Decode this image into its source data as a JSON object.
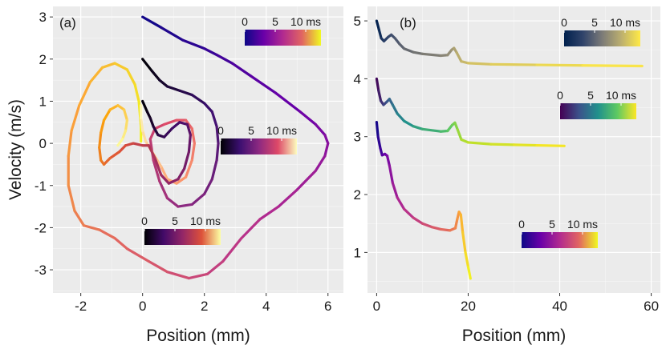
{
  "chart_data": [
    {
      "panel": "(a)",
      "type": "line",
      "xlabel": "Position (mm)",
      "ylabel": "Velocity (m/s)",
      "xlim": [
        -2.9,
        6.5
      ],
      "ylim": [
        -3.55,
        3.25
      ],
      "xticks": [
        -2,
        0,
        2,
        4,
        6
      ],
      "xtick_labels": [
        "-2",
        "0",
        "2",
        "4",
        "6"
      ],
      "yticks": [
        -3,
        -2,
        -1,
        0,
        1,
        2,
        3
      ],
      "ytick_labels": [
        "-3",
        "-2",
        "-1",
        "0",
        "1",
        "2",
        "3"
      ],
      "grid": true,
      "time_unit": "ms",
      "series": [
        {
          "colormap": "plasma",
          "colorbar_ticks": [
            "0",
            "5",
            "10 ms"
          ],
          "points": [
            [
              0,
              3
            ],
            [
              0.6,
              2.75
            ],
            [
              1.3,
              2.45
            ],
            [
              2.0,
              2.25
            ],
            [
              2.4,
              2.1
            ],
            [
              2.9,
              1.9
            ],
            [
              3.5,
              1.6
            ],
            [
              4.3,
              1.2
            ],
            [
              5.1,
              0.75
            ],
            [
              5.6,
              0.45
            ],
            [
              5.9,
              0.2
            ],
            [
              6.0,
              0.0
            ],
            [
              5.9,
              -0.3
            ],
            [
              5.6,
              -0.65
            ],
            [
              5.0,
              -1.1
            ],
            [
              4.4,
              -1.5
            ],
            [
              3.8,
              -1.8
            ],
            [
              3.2,
              -2.25
            ],
            [
              2.6,
              -2.8
            ],
            [
              2.1,
              -3.1
            ],
            [
              1.5,
              -3.2
            ],
            [
              0.8,
              -3.05
            ],
            [
              0.2,
              -2.8
            ],
            [
              -0.5,
              -2.5
            ],
            [
              -0.9,
              -2.25
            ],
            [
              -1.4,
              -2.05
            ],
            [
              -1.9,
              -1.95
            ],
            [
              -2.2,
              -1.6
            ],
            [
              -2.4,
              -1.0
            ],
            [
              -2.4,
              -0.3
            ],
            [
              -2.3,
              0.3
            ],
            [
              -2.05,
              0.9
            ],
            [
              -1.7,
              1.45
            ],
            [
              -1.3,
              1.8
            ],
            [
              -0.9,
              1.9
            ],
            [
              -0.5,
              1.75
            ],
            [
              -0.25,
              1.4
            ],
            [
              -0.12,
              1.0
            ],
            [
              -0.05,
              0.4
            ],
            [
              -0.05,
              0.05
            ]
          ]
        },
        {
          "colormap": "magma",
          "colorbar_ticks": [
            "0",
            "5",
            "10 ms"
          ],
          "points": [
            [
              0,
              2
            ],
            [
              0.3,
              1.72
            ],
            [
              0.55,
              1.5
            ],
            [
              0.8,
              1.35
            ],
            [
              1.2,
              1.25
            ],
            [
              1.6,
              1.15
            ],
            [
              2.0,
              0.95
            ],
            [
              2.25,
              0.75
            ],
            [
              2.4,
              0.4
            ],
            [
              2.45,
              0.0
            ],
            [
              2.4,
              -0.4
            ],
            [
              2.25,
              -0.85
            ],
            [
              2.0,
              -1.2
            ],
            [
              1.6,
              -1.45
            ],
            [
              1.15,
              -1.5
            ],
            [
              0.8,
              -1.3
            ],
            [
              0.55,
              -0.9
            ],
            [
              0.35,
              -0.4
            ],
            [
              0.25,
              0.1
            ],
            [
              0.4,
              0.35
            ],
            [
              0.7,
              0.45
            ],
            [
              1.1,
              0.55
            ],
            [
              1.4,
              0.55
            ],
            [
              1.6,
              0.35
            ],
            [
              1.68,
              0.0
            ],
            [
              1.6,
              -0.4
            ],
            [
              1.4,
              -0.8
            ],
            [
              1.1,
              -0.95
            ],
            [
              0.8,
              -0.85
            ],
            [
              0.6,
              -0.55
            ],
            [
              0.35,
              -0.25
            ],
            [
              0.1,
              0.05
            ],
            [
              0.0,
              0.3
            ],
            [
              -0.05,
              0.6
            ],
            [
              -0.05,
              0.9
            ]
          ]
        },
        {
          "colormap": "inferno",
          "colorbar_ticks": [
            "0",
            "5",
            "10 ms"
          ],
          "points": [
            [
              0,
              1
            ],
            [
              0.15,
              0.75
            ],
            [
              0.25,
              0.6
            ],
            [
              0.35,
              0.4
            ],
            [
              0.5,
              0.2
            ],
            [
              0.7,
              0.15
            ],
            [
              0.95,
              0.35
            ],
            [
              1.2,
              0.5
            ],
            [
              1.45,
              0.45
            ],
            [
              1.55,
              0.2
            ],
            [
              1.5,
              -0.2
            ],
            [
              1.35,
              -0.6
            ],
            [
              1.15,
              -0.85
            ],
            [
              0.85,
              -0.95
            ],
            [
              0.6,
              -0.75
            ],
            [
              0.4,
              -0.35
            ],
            [
              0.2,
              -0.05
            ],
            [
              0.0,
              -0.05
            ],
            [
              -0.3,
              0.0
            ],
            [
              -0.55,
              -0.05
            ],
            [
              -0.75,
              -0.2
            ],
            [
              -1.05,
              -0.35
            ],
            [
              -1.25,
              -0.5
            ],
            [
              -1.35,
              -0.4
            ],
            [
              -1.4,
              -0.1
            ],
            [
              -1.35,
              0.25
            ],
            [
              -1.25,
              0.55
            ],
            [
              -1.05,
              0.8
            ],
            [
              -0.8,
              0.9
            ],
            [
              -0.6,
              0.8
            ],
            [
              -0.5,
              0.55
            ],
            [
              -0.55,
              0.3
            ],
            [
              -0.65,
              0.1
            ],
            [
              -0.8,
              -0.05
            ]
          ]
        }
      ]
    },
    {
      "panel": "(b)",
      "type": "line",
      "xlabel": "Position (mm)",
      "ylabel": "",
      "xlim": [
        -2,
        62
      ],
      "ylim": [
        0.3,
        5.25
      ],
      "xticks": [
        0,
        20,
        40,
        60
      ],
      "xtick_labels": [
        "0",
        "20",
        "40",
        "60"
      ],
      "yticks": [
        1,
        2,
        3,
        4,
        5
      ],
      "ytick_labels": [
        "1",
        "2",
        "3",
        "4",
        "5"
      ],
      "grid": true,
      "time_unit": "ms",
      "series": [
        {
          "colormap": "cividis",
          "colorbar_ticks": [
            "0",
            "5",
            "10 ms"
          ],
          "points": [
            [
              0,
              5
            ],
            [
              0.5,
              4.85
            ],
            [
              1,
              4.7
            ],
            [
              1.6,
              4.65
            ],
            [
              2.5,
              4.72
            ],
            [
              3.2,
              4.76
            ],
            [
              4,
              4.7
            ],
            [
              5,
              4.6
            ],
            [
              6,
              4.52
            ],
            [
              8,
              4.46
            ],
            [
              10,
              4.43
            ],
            [
              14,
              4.4
            ],
            [
              15.5,
              4.41
            ],
            [
              16.4,
              4.5
            ],
            [
              16.9,
              4.53
            ],
            [
              17.5,
              4.45
            ],
            [
              18.5,
              4.3
            ],
            [
              20,
              4.27
            ],
            [
              25,
              4.25
            ],
            [
              35,
              4.24
            ],
            [
              45,
              4.23
            ],
            [
              58,
              4.22
            ]
          ]
        },
        {
          "colormap": "viridis",
          "colorbar_ticks": [
            "0",
            "5",
            "10 ms"
          ],
          "points": [
            [
              0,
              4
            ],
            [
              0.4,
              3.8
            ],
            [
              0.9,
              3.62
            ],
            [
              1.5,
              3.55
            ],
            [
              2.2,
              3.6
            ],
            [
              2.8,
              3.65
            ],
            [
              3.5,
              3.55
            ],
            [
              4.5,
              3.4
            ],
            [
              6,
              3.27
            ],
            [
              8,
              3.18
            ],
            [
              10,
              3.13
            ],
            [
              14,
              3.09
            ],
            [
              15.5,
              3.1
            ],
            [
              16.5,
              3.2
            ],
            [
              17.1,
              3.24
            ],
            [
              17.7,
              3.12
            ],
            [
              18.5,
              2.95
            ],
            [
              20,
              2.9
            ],
            [
              25,
              2.87
            ],
            [
              30,
              2.86
            ],
            [
              35,
              2.85
            ],
            [
              41,
              2.84
            ]
          ]
        },
        {
          "colormap": "plasma",
          "colorbar_ticks": [
            "0",
            "5",
            "10 ms"
          ],
          "points": [
            [
              0,
              3.25
            ],
            [
              0.3,
              3.0
            ],
            [
              0.8,
              2.8
            ],
            [
              1.2,
              2.68
            ],
            [
              1.8,
              2.7
            ],
            [
              2.3,
              2.67
            ],
            [
              2.8,
              2.5
            ],
            [
              3.5,
              2.2
            ],
            [
              4.5,
              1.95
            ],
            [
              6,
              1.75
            ],
            [
              8,
              1.6
            ],
            [
              10,
              1.5
            ],
            [
              12,
              1.44
            ],
            [
              14,
              1.4
            ],
            [
              16,
              1.38
            ],
            [
              17.2,
              1.42
            ],
            [
              17.6,
              1.57
            ],
            [
              18.0,
              1.7
            ],
            [
              18.4,
              1.65
            ],
            [
              18.8,
              1.35
            ],
            [
              19.4,
              1.0
            ],
            [
              20.0,
              0.75
            ],
            [
              20.5,
              0.55
            ]
          ]
        }
      ]
    }
  ]
}
